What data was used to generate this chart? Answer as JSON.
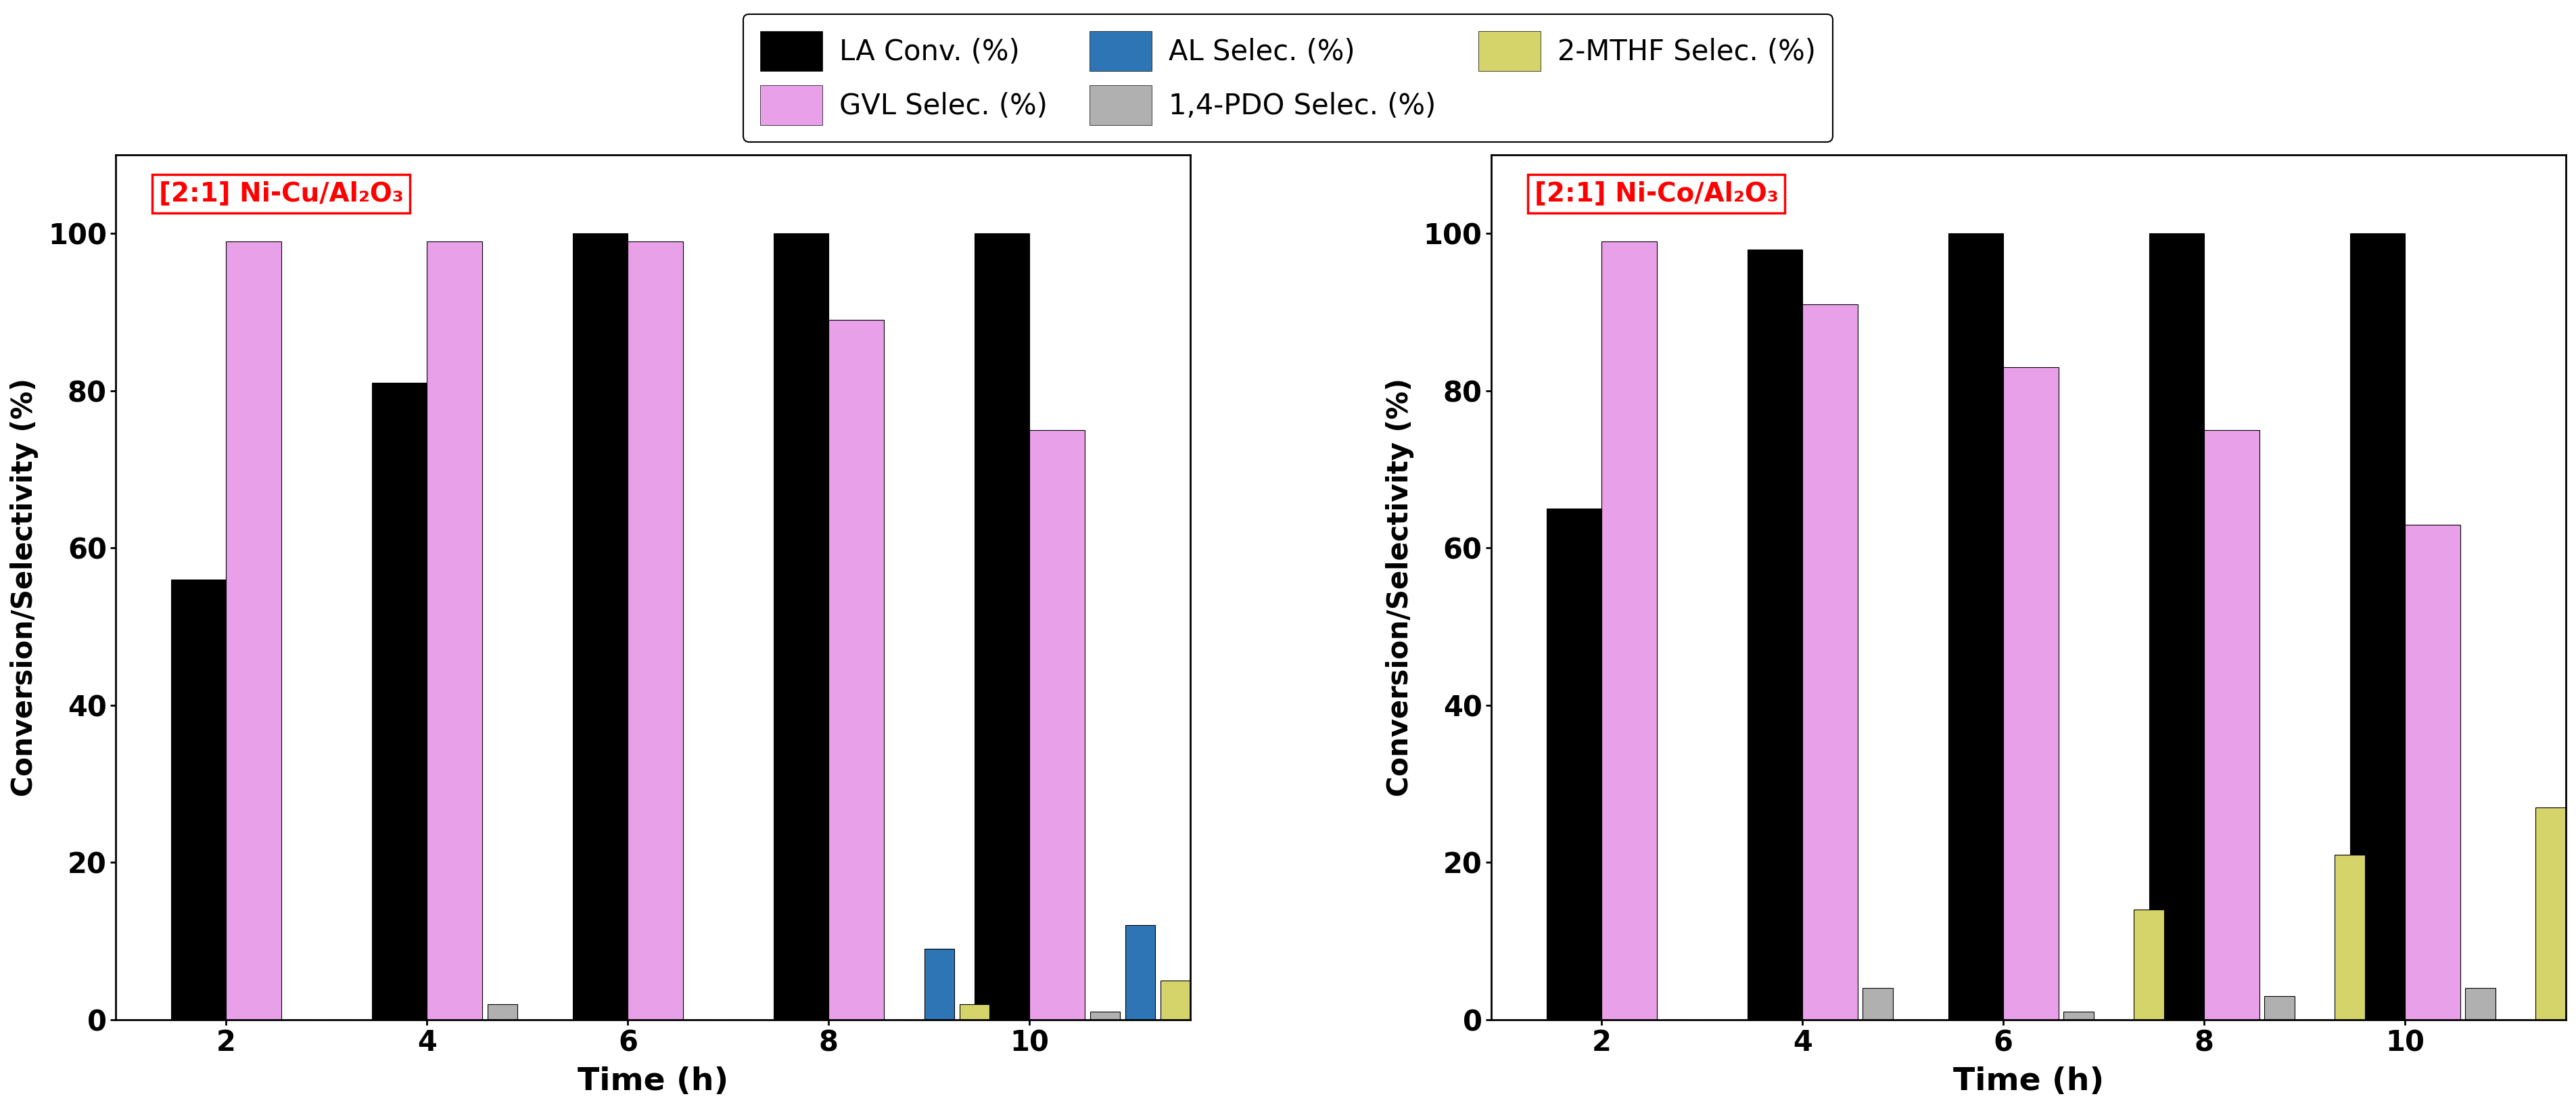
{
  "chart1": {
    "title": "[2:1] Ni-Cu/Al₂O₃",
    "times": [
      2,
      4,
      6,
      8,
      10
    ],
    "LA_conv": [
      56,
      81,
      100,
      100,
      100
    ],
    "GVL_selec": [
      99,
      99,
      99,
      89,
      75
    ],
    "PDO_selec": [
      0,
      2,
      0,
      0,
      1
    ],
    "AL_selec": [
      0,
      0,
      0,
      9,
      12
    ],
    "MTHF_selec": [
      0,
      0,
      0,
      2,
      5
    ]
  },
  "chart2": {
    "title": "[2:1] Ni-Co/Al₂O₃",
    "times": [
      2,
      4,
      6,
      8,
      10
    ],
    "LA_conv": [
      65,
      98,
      100,
      100,
      100
    ],
    "GVL_selec": [
      99,
      91,
      83,
      75,
      63
    ],
    "PDO_selec": [
      0,
      4,
      1,
      3,
      4
    ],
    "AL_selec": [
      0,
      0,
      0,
      0,
      0
    ],
    "MTHF_selec": [
      0,
      0,
      14,
      21,
      27
    ]
  },
  "colors": {
    "LA_conv": "#000000",
    "GVL_selec": "#e8a0e8",
    "AL_selec": "#2e75b6",
    "PDO_selec": "#b0b0b0",
    "MTHF_selec": "#d4d46a"
  },
  "legend_labels": [
    "LA Conv. (%)",
    "GVL Selec. (%)",
    "AL Selec. (%)",
    "1,4-PDO Selec. (%)",
    "2-MTHF Selec. (%)"
  ],
  "ylabel": "Conversion/Selectivity (%)",
  "xlabel": "Time (h)",
  "ylim": [
    0,
    110
  ],
  "yticks": [
    0,
    20,
    40,
    60,
    80,
    100
  ]
}
